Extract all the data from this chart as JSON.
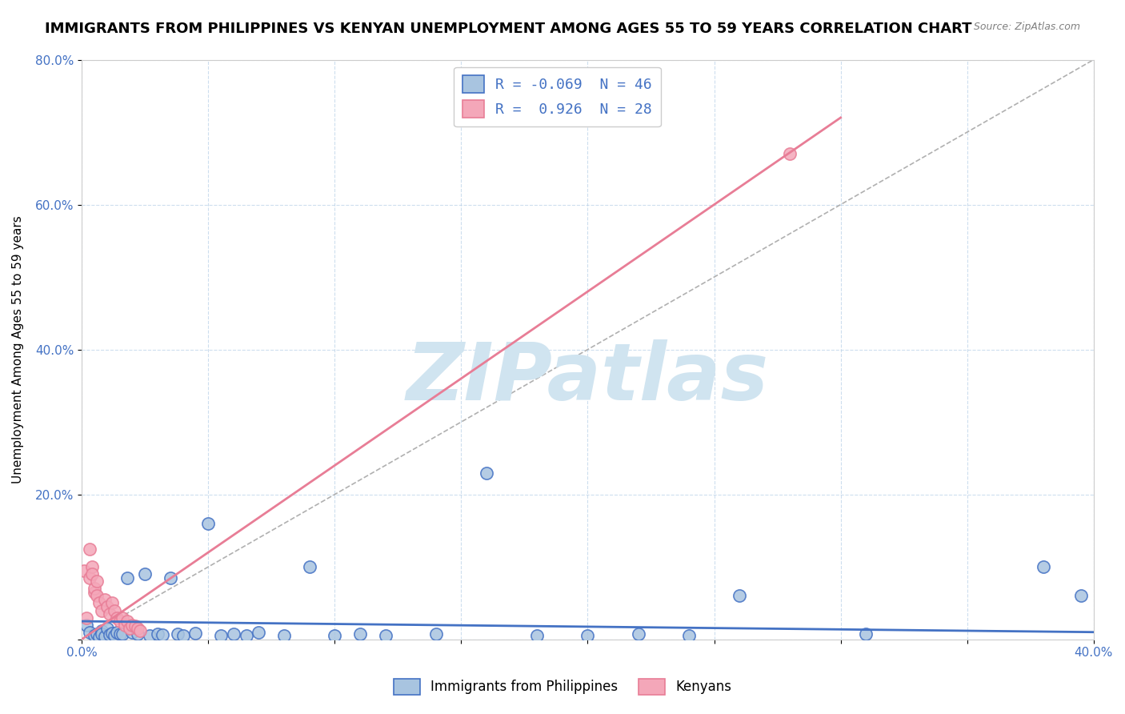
{
  "title": "IMMIGRANTS FROM PHILIPPINES VS KENYAN UNEMPLOYMENT AMONG AGES 55 TO 59 YEARS CORRELATION CHART",
  "source": "Source: ZipAtlas.com",
  "xlabel": "",
  "ylabel": "Unemployment Among Ages 55 to 59 years",
  "xlim": [
    0.0,
    0.4
  ],
  "ylim": [
    0.0,
    0.8
  ],
  "xticks": [
    0.0,
    0.05,
    0.1,
    0.15,
    0.2,
    0.25,
    0.3,
    0.35,
    0.4
  ],
  "yticks": [
    0.0,
    0.2,
    0.4,
    0.6,
    0.8
  ],
  "xtick_labels": [
    "0.0%",
    "",
    "",
    "",
    "",
    "",
    "",
    "",
    "40.0%"
  ],
  "ytick_labels": [
    "",
    "20.0%",
    "40.0%",
    "60.0%",
    "80.0%"
  ],
  "blue_color": "#a8c4e0",
  "pink_color": "#f4a7b9",
  "blue_line_color": "#4472c4",
  "pink_line_color": "#e87d96",
  "ref_line_color": "#b0b0b0",
  "legend_blue_label": "R = -0.069  N = 46",
  "legend_pink_label": "R =  0.926  N = 28",
  "watermark": "ZIPatlas",
  "watermark_color": "#d0e4f0",
  "title_fontsize": 13,
  "axis_label_fontsize": 11,
  "tick_fontsize": 11,
  "blue_R": -0.069,
  "blue_N": 46,
  "pink_R": 0.926,
  "pink_N": 28,
  "blue_scatter_x": [
    0.002,
    0.003,
    0.005,
    0.006,
    0.007,
    0.008,
    0.008,
    0.009,
    0.01,
    0.011,
    0.012,
    0.013,
    0.014,
    0.015,
    0.016,
    0.018,
    0.02,
    0.022,
    0.025,
    0.027,
    0.03,
    0.032,
    0.035,
    0.038,
    0.04,
    0.045,
    0.05,
    0.055,
    0.06,
    0.065,
    0.07,
    0.08,
    0.09,
    0.1,
    0.11,
    0.12,
    0.14,
    0.16,
    0.18,
    0.2,
    0.22,
    0.24,
    0.26,
    0.31,
    0.38,
    0.395
  ],
  "blue_scatter_y": [
    0.02,
    0.01,
    0.005,
    0.008,
    0.003,
    0.012,
    0.007,
    0.004,
    0.015,
    0.006,
    0.009,
    0.005,
    0.01,
    0.007,
    0.008,
    0.085,
    0.01,
    0.008,
    0.09,
    0.005,
    0.007,
    0.006,
    0.085,
    0.008,
    0.005,
    0.009,
    0.16,
    0.005,
    0.008,
    0.005,
    0.01,
    0.005,
    0.1,
    0.005,
    0.008,
    0.005,
    0.007,
    0.23,
    0.005,
    0.005,
    0.008,
    0.005,
    0.06,
    0.008,
    0.1,
    0.06
  ],
  "pink_scatter_x": [
    0.001,
    0.002,
    0.003,
    0.003,
    0.004,
    0.004,
    0.005,
    0.005,
    0.006,
    0.006,
    0.007,
    0.008,
    0.009,
    0.01,
    0.011,
    0.012,
    0.013,
    0.014,
    0.015,
    0.016,
    0.017,
    0.018,
    0.019,
    0.02,
    0.021,
    0.022,
    0.023,
    0.28
  ],
  "pink_scatter_y": [
    0.095,
    0.03,
    0.125,
    0.085,
    0.1,
    0.09,
    0.065,
    0.07,
    0.08,
    0.06,
    0.05,
    0.04,
    0.055,
    0.045,
    0.035,
    0.05,
    0.04,
    0.03,
    0.025,
    0.03,
    0.02,
    0.025,
    0.015,
    0.02,
    0.018,
    0.015,
    0.012,
    0.67
  ],
  "blue_trend_x": [
    0.0,
    0.4
  ],
  "blue_trend_y": [
    0.025,
    0.01
  ],
  "pink_trend_x": [
    0.0,
    0.3
  ],
  "pink_trend_y": [
    0.0,
    0.72
  ],
  "ref_line_x": [
    0.0,
    0.4
  ],
  "ref_line_y": [
    0.0,
    0.8
  ]
}
